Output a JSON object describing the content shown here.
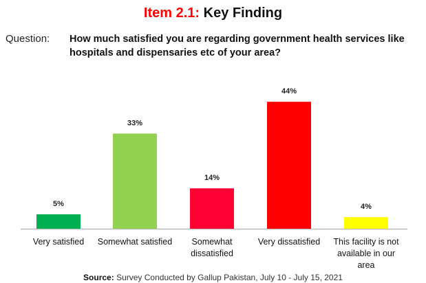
{
  "title": {
    "prefix": "Item 2.1:",
    "main": "Key Finding"
  },
  "question": {
    "label": "Question:",
    "text": "How much satisfied you are regarding government health services like hospitals and dispensaries etc of your area?"
  },
  "source": {
    "label": "Source:",
    "text": "Survey Conducted by Gallup Pakistan, July 10 - July 15, 2021"
  },
  "chart_data": {
    "type": "bar",
    "categories": [
      "Very satisfied",
      "Somewhat satisfied",
      "Somewhat dissatisfied",
      "Very dissatisfied",
      "This facility is not available in our area"
    ],
    "values": [
      5,
      33,
      14,
      44,
      4
    ],
    "labels": [
      "5%",
      "33%",
      "14%",
      "44%",
      "4%"
    ],
    "colors": [
      "#00b050",
      "#92d050",
      "#ff0033",
      "#ff0000",
      "#ffff00"
    ],
    "ylim": [
      0,
      50
    ]
  }
}
